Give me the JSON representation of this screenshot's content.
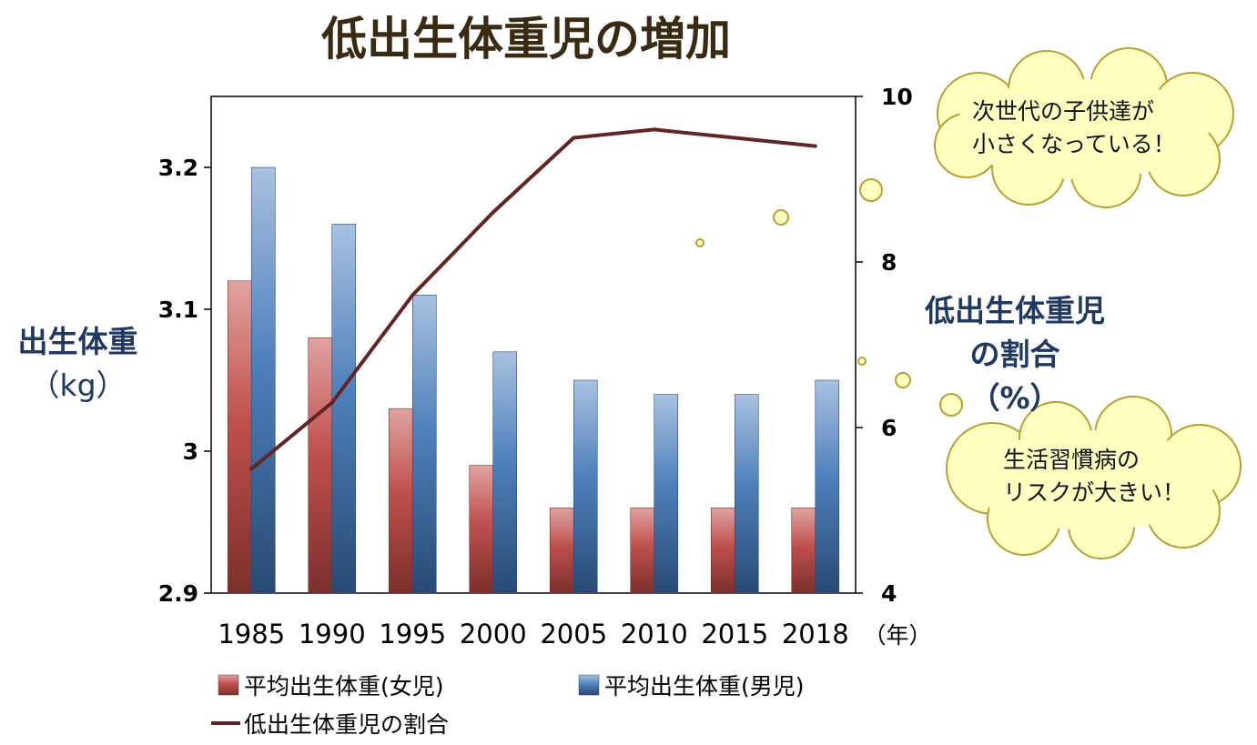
{
  "chart_data": {
    "type": "bar+line",
    "title": "低出生体重児の増加",
    "categories": [
      "1985",
      "1990",
      "1995",
      "2000",
      "2005",
      "2010",
      "2015",
      "2018"
    ],
    "x_unit": "（年）",
    "series": [
      {
        "name": "平均出生体重(女児)",
        "type": "bar",
        "axis": "left",
        "color": "#c0504d",
        "values": [
          3.12,
          3.08,
          3.03,
          2.99,
          2.96,
          2.96,
          2.96,
          2.96
        ]
      },
      {
        "name": "平均出生体重(男児)",
        "type": "bar",
        "axis": "left",
        "color": "#4f81bd",
        "values": [
          3.2,
          3.16,
          3.11,
          3.07,
          3.05,
          3.04,
          3.04,
          3.05
        ]
      },
      {
        "name": "低出生体重児の割合",
        "type": "line",
        "axis": "right",
        "color": "#632523",
        "values": [
          5.5,
          6.3,
          7.6,
          8.6,
          9.5,
          9.6,
          9.5,
          9.4
        ]
      }
    ],
    "left_axis": {
      "label_line1": "出生体重",
      "label_line2": "（kg）",
      "ylim": [
        2.9,
        3.25
      ],
      "ticks": [
        "2.9",
        "3",
        "3.1",
        "3.2"
      ],
      "tick_values": [
        2.9,
        3.0,
        3.1,
        3.2
      ]
    },
    "right_axis": {
      "label_line1": "低出生体重児",
      "label_line2": "の割合",
      "label_line3": "（%）",
      "ylim": [
        4,
        10
      ],
      "ticks": [
        "4",
        "6",
        "8",
        "10"
      ],
      "tick_values": [
        4,
        6,
        8,
        10
      ]
    },
    "legend_position": "bottom-left"
  },
  "callouts": [
    {
      "line1": "次世代の子供達が",
      "line2": "小さくなっている！"
    },
    {
      "line1": "生活習慣病の",
      "line2": "リスクが大きい！"
    }
  ],
  "colors": {
    "title": "#3a2a12",
    "axis_title": "#1f3864",
    "bubble_fill": "#ffffc0",
    "bubble_stroke": "#b8a030"
  }
}
